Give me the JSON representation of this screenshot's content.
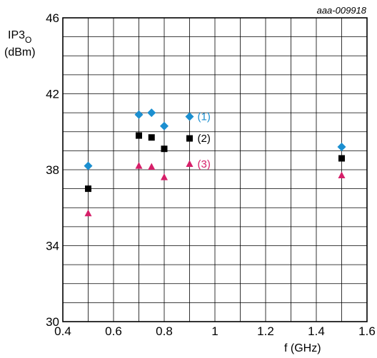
{
  "chart_data": {
    "type": "scatter",
    "figure_id": "aaa-009918",
    "title": "",
    "xlabel": "f (GHz)",
    "ylabel": {
      "main": "IP3",
      "sub": "O",
      "unit": "(dBm)"
    },
    "xlim": [
      0.4,
      1.6
    ],
    "ylim": [
      30,
      46
    ],
    "x_ticks": [
      "0.4",
      "0.6",
      "0.8",
      "1",
      "1.2",
      "1.4",
      "1.6"
    ],
    "y_ticks": [
      "30",
      "34",
      "38",
      "42",
      "46"
    ],
    "grid": true,
    "series": [
      {
        "name": "(1)",
        "marker": "diamond",
        "color": "#1b8fd0",
        "points": [
          [
            0.5,
            38.2
          ],
          [
            0.7,
            40.9
          ],
          [
            0.75,
            41.0
          ],
          [
            0.8,
            40.3
          ],
          [
            0.9,
            40.8
          ],
          [
            1.5,
            39.2
          ]
        ]
      },
      {
        "name": "(2)",
        "marker": "square",
        "color": "#000000",
        "points": [
          [
            0.5,
            37.0
          ],
          [
            0.7,
            39.8
          ],
          [
            0.75,
            39.7
          ],
          [
            0.8,
            39.1
          ],
          [
            0.9,
            39.65
          ],
          [
            1.5,
            38.6
          ]
        ]
      },
      {
        "name": "(3)",
        "marker": "triangle",
        "color": "#d61f69",
        "points": [
          [
            0.5,
            35.7
          ],
          [
            0.7,
            38.2
          ],
          [
            0.75,
            38.15
          ],
          [
            0.8,
            37.6
          ],
          [
            0.9,
            38.3
          ],
          [
            1.5,
            37.7
          ]
        ]
      }
    ]
  }
}
